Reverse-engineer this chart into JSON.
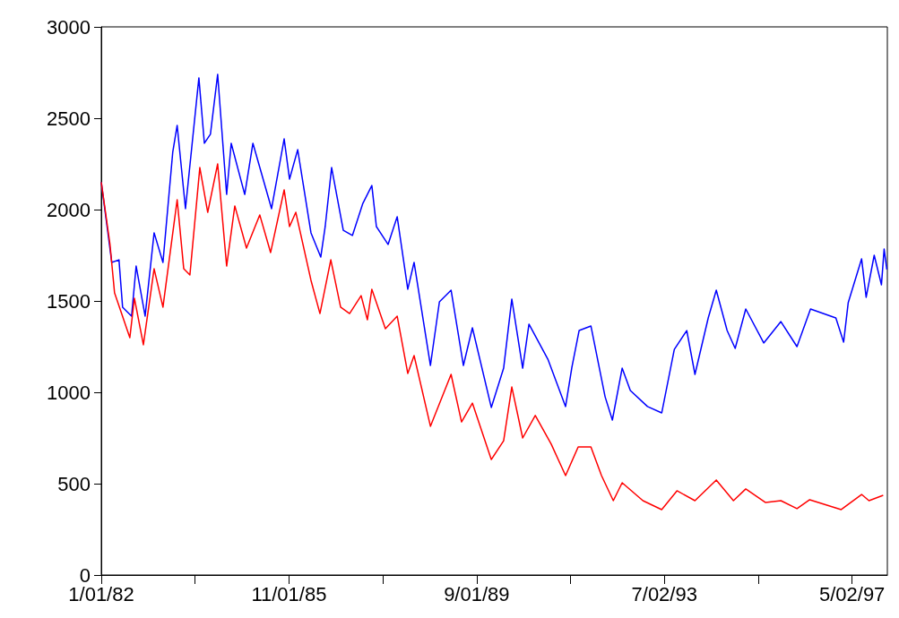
{
  "chart_data": {
    "type": "line",
    "xlim": [
      "1982-01-01",
      "1998-01-20"
    ],
    "xticks": [
      {
        "value": "1982-01-01",
        "label": "1/01/82"
      },
      {
        "value": "1983-12-01",
        "label": null
      },
      {
        "value": "1985-11-01",
        "label": "11/01/85"
      },
      {
        "value": "1987-10-01",
        "label": null
      },
      {
        "value": "1989-09-01",
        "label": "9/01/89"
      },
      {
        "value": "1991-08-01",
        "label": null
      },
      {
        "value": "1993-07-02",
        "label": "7/02/93"
      },
      {
        "value": "1995-06-02",
        "label": null
      },
      {
        "value": "1997-05-02",
        "label": "5/02/97"
      }
    ],
    "ylim": [
      0,
      3000
    ],
    "yticks": [
      0,
      500,
      1000,
      1500,
      2000,
      2500,
      3000
    ],
    "grid": false,
    "marker": "none",
    "line_style": "solid",
    "series": [
      {
        "color": "#0000ff",
        "x": [
          "1982-01-01",
          "1982-03-20",
          "1982-05-13",
          "1982-06-09",
          "1982-08-15",
          "1982-09-18",
          "1982-11-24",
          "1983-01-30",
          "1983-04-06",
          "1983-06-18",
          "1983-07-21",
          "1983-09-21",
          "1983-12-30",
          "1984-02-09",
          "1984-03-25",
          "1984-05-18",
          "1984-07-24",
          "1984-08-27",
          "1984-12-06",
          "1985-02-05",
          "1985-06-24",
          "1985-09-26",
          "1985-11-05",
          "1986-01-05",
          "1986-04-14",
          "1986-06-26",
          "1986-07-29",
          "1986-09-15",
          "1986-12-11",
          "1987-02-17",
          "1987-05-06",
          "1987-07-12",
          "1987-08-15",
          "1987-11-10",
          "1988-01-17",
          "1988-04-05",
          "1988-05-22",
          "1988-09-21",
          "1988-11-27",
          "1989-02-22",
          "1989-05-25",
          "1989-07-31",
          "1989-12-19",
          "1990-03-21",
          "1990-05-21",
          "1990-08-10",
          "1990-09-26",
          "1991-02-14",
          "1991-06-26",
          "1991-08-12",
          "1991-10-05",
          "1992-01-01",
          "1992-04-16",
          "1992-06-09",
          "1992-08-21",
          "1992-10-21",
          "1993-02-26",
          "1993-06-12",
          "1993-09-14",
          "1993-12-16",
          "1994-02-15",
          "1994-05-25",
          "1994-07-24",
          "1994-10-13",
          "1994-12-12",
          "1995-03-01",
          "1995-07-13",
          "1995-11-18",
          "1996-03-17",
          "1996-06-26",
          "1997-01-01",
          "1997-02-28",
          "1997-04-03",
          "1997-07-12",
          "1997-08-15",
          "1997-10-14",
          "1997-12-07",
          "1997-12-27",
          "1998-01-16"
        ],
        "values": [
          2150,
          1711,
          1725,
          1466,
          1417,
          1691,
          1417,
          1873,
          1711,
          2314,
          2461,
          2005,
          2721,
          2363,
          2412,
          2740,
          2083,
          2363,
          2083,
          2363,
          2005,
          2387,
          2167,
          2328,
          1873,
          1740,
          1907,
          2230,
          1887,
          1858,
          2034,
          2132,
          1907,
          1809,
          1961,
          1564,
          1711,
          1147,
          1495,
          1559,
          1147,
          1353,
          917,
          1132,
          1510,
          1132,
          1373,
          1181,
          922,
          1137,
          1338,
          1363,
          975,
          848,
          1132,
          1010,
          922,
          887,
          1235,
          1338,
          1098,
          1407,
          1559,
          1338,
          1240,
          1456,
          1270,
          1387,
          1250,
          1456,
          1407,
          1275,
          1490,
          1730,
          1520,
          1750,
          1588,
          1784,
          1672
        ]
      },
      {
        "color": "#ff0000",
        "x": [
          "1982-01-01",
          "1982-03-07",
          "1982-04-10",
          "1982-08-02",
          "1982-09-05",
          "1982-11-11",
          "1983-01-30",
          "1983-04-06",
          "1983-07-21",
          "1983-09-08",
          "1983-10-24",
          "1984-01-06",
          "1984-03-05",
          "1984-05-18",
          "1984-07-24",
          "1984-09-23",
          "1984-12-19",
          "1985-03-28",
          "1985-06-17",
          "1985-09-26",
          "1985-11-05",
          "1985-12-22",
          "1986-04-14",
          "1986-06-20",
          "1986-09-09",
          "1986-11-21",
          "1987-01-27",
          "1987-04-23",
          "1987-06-09",
          "1987-07-12",
          "1987-10-21",
          "1988-01-17",
          "1988-04-05",
          "1988-05-22",
          "1988-09-21",
          "1989-02-22",
          "1989-05-11",
          "1989-07-31",
          "1989-12-19",
          "1990-03-21",
          "1990-05-21",
          "1990-08-10",
          "1990-11-12",
          "1991-03-11",
          "1991-06-26",
          "1991-09-28",
          "1992-01-01",
          "1992-03-20",
          "1992-06-16",
          "1992-08-21",
          "1993-01-23",
          "1993-06-12",
          "1993-10-04",
          "1994-02-15",
          "1994-07-24",
          "1994-11-29",
          "1995-03-01",
          "1995-07-27",
          "1995-11-18",
          "1996-03-17",
          "1996-06-20",
          "1997-02-10",
          "1997-07-12",
          "1997-09-05",
          "1997-12-20"
        ],
        "values": [
          2150,
          1809,
          1544,
          1299,
          1515,
          1260,
          1676,
          1466,
          2054,
          1676,
          1642,
          2230,
          1985,
          2250,
          1691,
          2020,
          1789,
          1971,
          1765,
          2108,
          1907,
          1985,
          1613,
          1431,
          1725,
          1466,
          1431,
          1529,
          1397,
          1564,
          1348,
          1417,
          1103,
          1201,
          814,
          1098,
          838,
          941,
          632,
          735,
          1029,
          750,
          873,
          716,
          544,
          701,
          701,
          544,
          407,
          505,
          407,
          358,
          461,
          407,
          520,
          407,
          471,
          397,
          407,
          363,
          412,
          358,
          441,
          407,
          436
        ]
      }
    ]
  }
}
